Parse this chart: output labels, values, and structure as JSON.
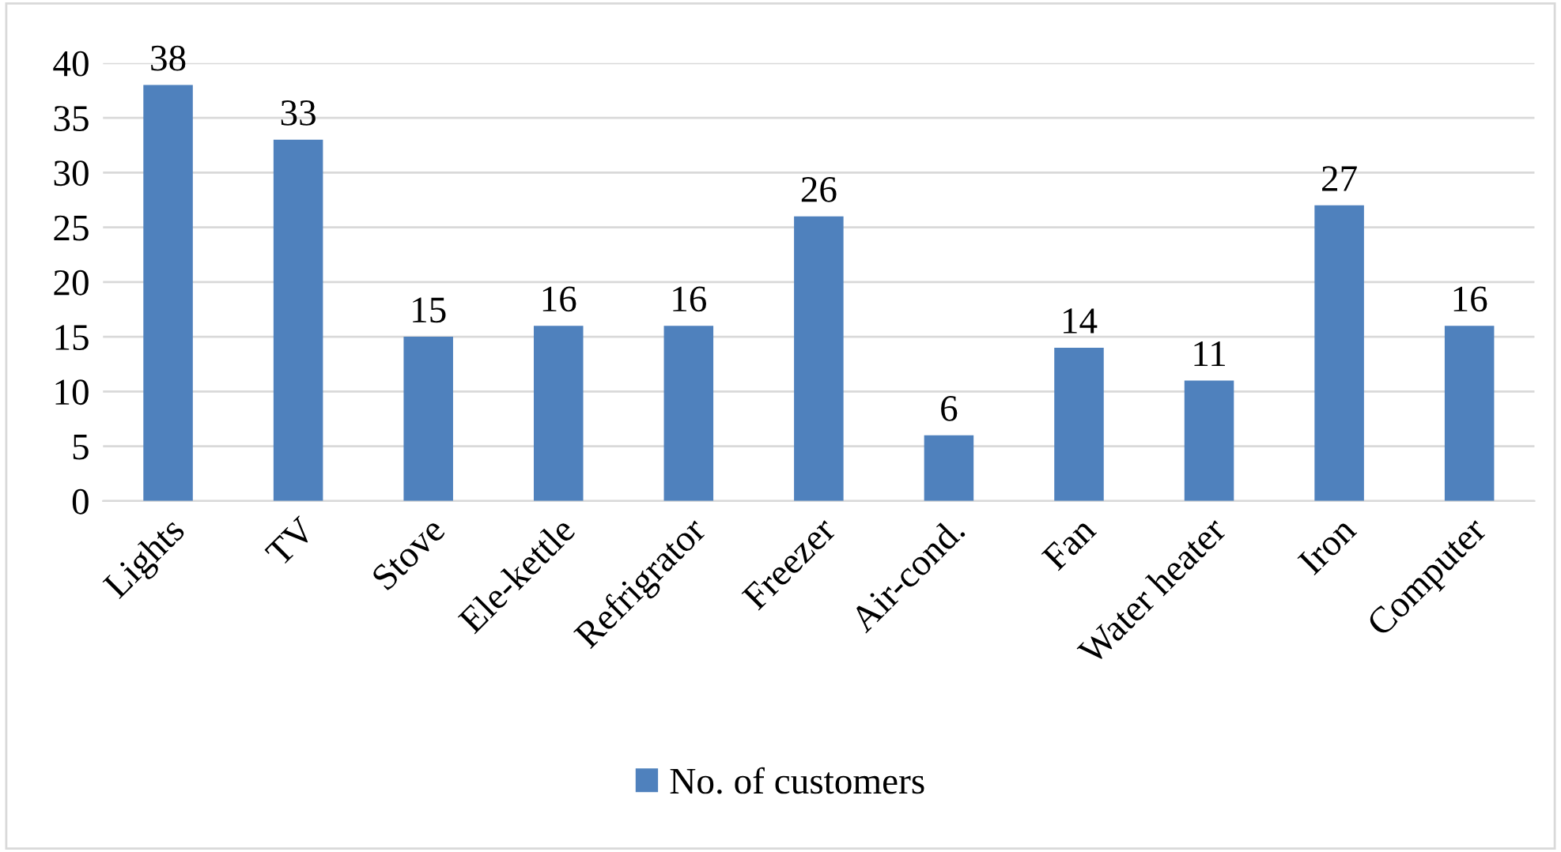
{
  "chart_data": {
    "type": "bar",
    "categories": [
      "Lights",
      "TV",
      "Stove",
      "Ele-kettle",
      "Refrigrator",
      "Freezer",
      "Air-cond.",
      "Fan",
      "Water heater",
      "Iron",
      "Computer"
    ],
    "series": [
      {
        "name": "No. of customers",
        "color": "#4f81bd",
        "values": [
          38,
          33,
          15,
          16,
          16,
          26,
          6,
          14,
          11,
          27,
          16
        ]
      }
    ],
    "ylim": [
      0,
      40
    ],
    "yticks": [
      0,
      5,
      10,
      15,
      20,
      25,
      30,
      35,
      40
    ],
    "grid": "y",
    "legend": "bottom",
    "data_labels": true
  }
}
